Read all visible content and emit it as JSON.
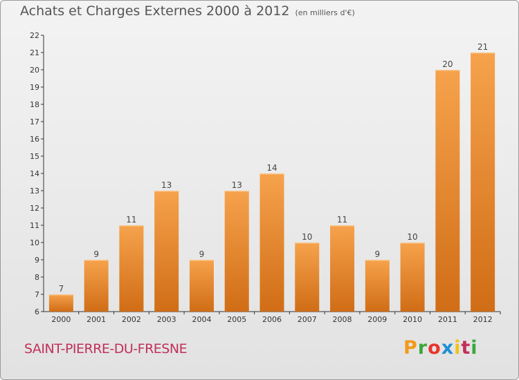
{
  "header": {
    "title": "Achats et Charges Externes 2000 à 2012",
    "unit": "(en milliers d'€)"
  },
  "footer": {
    "place": "SAINT-PIERRE-DU-FRESNE",
    "brand": "Proxiti",
    "brand_letter_colors": [
      "#f29a1b",
      "#3aa83a",
      "#e8352b",
      "#1f8fd6",
      "#f2c21b",
      "#c0305a",
      "#3aa83a"
    ]
  },
  "colors": {
    "bar_light": "#f6a24c",
    "bar_dark": "#d06d16",
    "axis": "#333333",
    "grid": "#bdbdbd"
  },
  "chart_data": {
    "type": "bar",
    "categories": [
      "2000",
      "2001",
      "2002",
      "2003",
      "2004",
      "2005",
      "2006",
      "2007",
      "2008",
      "2009",
      "2010",
      "2011",
      "2012"
    ],
    "values": [
      7,
      9,
      11,
      13,
      9,
      13,
      14,
      10,
      11,
      9,
      10,
      20,
      21
    ],
    "yticks": [
      6,
      7,
      8,
      9,
      10,
      11,
      12,
      13,
      14,
      15,
      16,
      17,
      18,
      19,
      20,
      21,
      22
    ],
    "ylim": [
      6,
      22
    ],
    "grid": false,
    "data_labels": true
  }
}
